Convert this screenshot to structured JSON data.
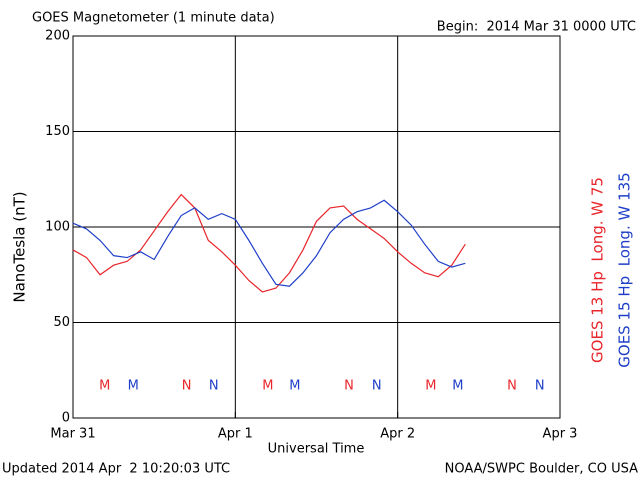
{
  "chart_data": {
    "type": "line",
    "title": "GOES Magnetometer (1 minute data)",
    "subtitle": "Begin:  2014 Mar 31 0000 UTC",
    "ylabel": "NanoTesla (nT)",
    "xlabel": "Universal Time",
    "footer_left": "Updated 2014 Apr  2 10:20:03 UTC",
    "footer_right": "NOAA/SWPC Boulder, CO USA",
    "xlim": [
      0,
      72
    ],
    "xticks": [
      {
        "value": 0,
        "label": "Mar 31"
      },
      {
        "value": 24,
        "label": "Apr 1"
      },
      {
        "value": 48,
        "label": "Apr 2"
      },
      {
        "value": 72,
        "label": "Apr 3"
      }
    ],
    "ylim": [
      0,
      200
    ],
    "yticks": [
      0,
      50,
      100,
      150,
      200
    ],
    "grid": true,
    "x": [
      0,
      2,
      4,
      6,
      8,
      10,
      12,
      14,
      16,
      18,
      20,
      22,
      24,
      26,
      28,
      30,
      32,
      34,
      36,
      38,
      40,
      42,
      44,
      46,
      48,
      50,
      52,
      54,
      56,
      58
    ],
    "series": [
      {
        "name": "GOES 13 Hp  Long. W 75",
        "color": "#e8262b",
        "values": [
          88,
          84,
          75,
          80,
          82,
          88,
          98,
          108,
          117,
          110,
          93,
          87,
          80,
          72,
          66,
          68,
          76,
          88,
          103,
          110,
          111,
          104,
          99,
          94,
          87,
          81,
          76,
          74,
          80,
          91
        ]
      },
      {
        "name": "GOES 15 Hp  Long. W 135",
        "color": "#1f3fc8",
        "values": [
          102,
          99,
          93,
          85,
          84,
          87,
          83,
          95,
          106,
          110,
          104,
          107,
          104,
          93,
          81,
          70,
          69,
          76,
          85,
          97,
          104,
          108,
          110,
          114,
          108,
          101,
          91,
          82,
          79,
          81
        ]
      }
    ],
    "markers": [
      {
        "label": "M",
        "x": 4.7,
        "series": 0
      },
      {
        "label": "M",
        "x": 8.9,
        "series": 1
      },
      {
        "label": "N",
        "x": 16.8,
        "series": 0
      },
      {
        "label": "N",
        "x": 20.8,
        "series": 1
      },
      {
        "label": "M",
        "x": 28.8,
        "series": 0
      },
      {
        "label": "M",
        "x": 32.8,
        "series": 1
      },
      {
        "label": "N",
        "x": 40.8,
        "series": 0
      },
      {
        "label": "N",
        "x": 44.9,
        "series": 1
      },
      {
        "label": "M",
        "x": 52.9,
        "series": 0
      },
      {
        "label": "M",
        "x": 56.9,
        "series": 1
      },
      {
        "label": "N",
        "x": 64.9,
        "series": 0
      },
      {
        "label": "N",
        "x": 69.0,
        "series": 1
      }
    ]
  }
}
